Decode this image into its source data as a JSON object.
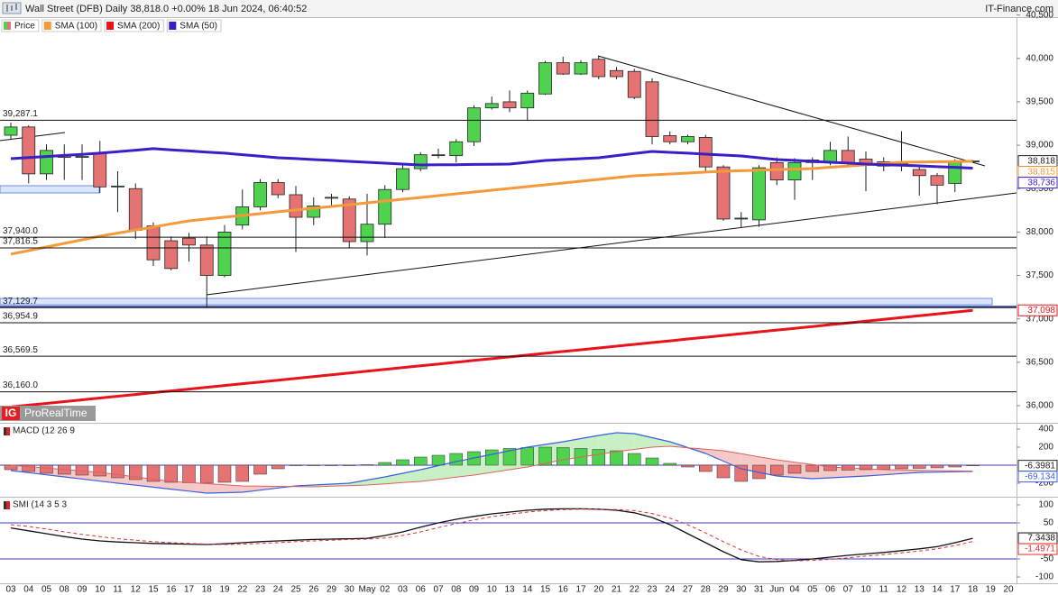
{
  "chart_data": [
    {
      "type": "candlestick",
      "title": "Wall Street (DFB) Daily 38,818.0 +0.00% 18 Jun 2024, 06:40:52",
      "source": "IT-Finance.com",
      "watermark_logo": "IG",
      "watermark": "ProRealTime",
      "categories": [
        "03",
        "04",
        "05",
        "08",
        "09",
        "10",
        "11",
        "12",
        "15",
        "16",
        "17",
        "18",
        "19",
        "22",
        "23",
        "24",
        "25",
        "26",
        "29",
        "30",
        "May",
        "02",
        "03",
        "06",
        "07",
        "08",
        "09",
        "10",
        "13",
        "14",
        "15",
        "16",
        "17",
        "20",
        "21",
        "22",
        "23",
        "24",
        "27",
        "28",
        "29",
        "30",
        "31",
        "Jun",
        "04",
        "05",
        "06",
        "07",
        "10",
        "11",
        "12",
        "13",
        "14",
        "17",
        "18",
        "19",
        "20"
      ],
      "ylim": [
        35813,
        40465
      ],
      "yticks": [
        {
          "value": 40500,
          "label": "40,500"
        },
        {
          "value": 40000,
          "label": "40,000"
        },
        {
          "value": 39500,
          "label": "39,500"
        },
        {
          "value": 39000,
          "label": "39,000"
        },
        {
          "value": 38500,
          "label": "38,500"
        },
        {
          "value": 38000,
          "label": "38,000"
        },
        {
          "value": 37500,
          "label": "37,500"
        },
        {
          "value": 37000,
          "label": "37,000"
        },
        {
          "value": 36500,
          "label": "36,500"
        },
        {
          "value": 36000,
          "label": "36,000"
        }
      ],
      "levels": [
        {
          "value": 39287.1,
          "label": "39,287.1"
        },
        {
          "value": 37940.0,
          "label": "37,940.0"
        },
        {
          "value": 37816.5,
          "label": "37,816.5"
        },
        {
          "value": 37129.7,
          "label": "37,129.7"
        },
        {
          "value": 36954.9,
          "label": "36,954.9"
        },
        {
          "value": 36569.5,
          "label": "36,569.5"
        },
        {
          "value": 36160.0,
          "label": "36,160.0"
        }
      ],
      "series": [
        {
          "name": "Price",
          "up_color": "#4fd34f",
          "down_color": "#e57373",
          "color": "#222222",
          "last_label": "38,818",
          "open": [
            39115,
            39210,
            38670,
            38880,
            38860,
            38910,
            38520,
            38500,
            38070,
            37900,
            37930,
            37850,
            37500,
            38080,
            38290,
            38570,
            38430,
            38170,
            38390,
            38380,
            37890,
            38090,
            38490,
            38730,
            38890,
            38880,
            39040,
            39430,
            39500,
            39430,
            39590,
            39950,
            39820,
            39990,
            39860,
            39850,
            39730,
            39110,
            39040,
            39090,
            38750,
            38150,
            38140,
            38800,
            38600,
            38800,
            38800,
            38940,
            38840,
            38810,
            38780,
            38720,
            38650,
            38560,
            38818,
            null,
            null
          ],
          "high": [
            39260,
            39230,
            39010,
            39010,
            39010,
            39050,
            38700,
            38560,
            38110,
            37950,
            37990,
            37950,
            38080,
            38490,
            38610,
            38610,
            38530,
            38400,
            38440,
            38410,
            38440,
            38540,
            38770,
            38920,
            38960,
            39070,
            39460,
            39560,
            39630,
            39630,
            39970,
            40020,
            39980,
            40030,
            39900,
            39880,
            39770,
            39160,
            39120,
            39120,
            38770,
            38230,
            38770,
            38860,
            38850,
            38860,
            39040,
            39100,
            38930,
            38860,
            39160,
            38750,
            38680,
            38840,
            38830,
            null,
            null
          ],
          "low": [
            39060,
            38560,
            38600,
            38600,
            38600,
            38450,
            38230,
            37920,
            37610,
            37560,
            37660,
            37130,
            37480,
            38030,
            38250,
            38390,
            37770,
            38080,
            38300,
            37820,
            37730,
            37930,
            38460,
            38700,
            38850,
            38800,
            38990,
            39410,
            39380,
            39290,
            39580,
            39810,
            39810,
            39760,
            39760,
            39530,
            39010,
            39010,
            39010,
            38700,
            38130,
            38050,
            38060,
            38540,
            38370,
            38600,
            38770,
            38750,
            38470,
            38700,
            38700,
            38420,
            38320,
            38460,
            38810,
            null,
            null
          ],
          "close": [
            39210,
            38670,
            38940,
            38860,
            38870,
            38520,
            38530,
            38020,
            37680,
            37580,
            37850,
            37500,
            38000,
            38290,
            38570,
            38430,
            38170,
            38300,
            38400,
            37890,
            38090,
            38490,
            38730,
            38890,
            38880,
            39040,
            39430,
            39480,
            39430,
            39600,
            39950,
            39820,
            39950,
            39790,
            39790,
            39550,
            39100,
            39040,
            39100,
            38750,
            38150,
            38160,
            38740,
            38600,
            38800,
            38830,
            38940,
            38790,
            38790,
            38760,
            38790,
            38650,
            38540,
            38820,
            38818,
            null,
            null
          ]
        },
        {
          "name": "SMA (100)",
          "color": "#f59a3a",
          "width": 3,
          "last_label": "38,815",
          "values": [
            37745,
            37786,
            37828,
            37869,
            37911,
            37952,
            37987,
            38023,
            38058,
            38094,
            38129,
            38150,
            38171,
            38191,
            38212,
            38233,
            38254,
            38274,
            38295,
            38315,
            38336,
            38357,
            38378,
            38398,
            38419,
            38440,
            38461,
            38482,
            38502,
            38523,
            38544,
            38565,
            38586,
            38606,
            38627,
            38648,
            38658,
            38669,
            38679,
            38690,
            38700,
            38706,
            38712,
            38719,
            38725,
            38731,
            38746,
            38760,
            38775,
            38789,
            38804,
            38807,
            38810,
            38812,
            38815,
            null,
            null
          ]
        },
        {
          "name": "SMA (200)",
          "color": "#e8141c",
          "width": 3,
          "last_label": "37,098",
          "values": [
            35985,
            36006,
            36026,
            36047,
            36067,
            36088,
            36109,
            36129,
            36150,
            36170,
            36191,
            36212,
            36232,
            36253,
            36273,
            36294,
            36315,
            36335,
            36356,
            36376,
            36397,
            36418,
            36438,
            36459,
            36479,
            36500,
            36521,
            36541,
            36562,
            36582,
            36603,
            36624,
            36644,
            36665,
            36685,
            36706,
            36727,
            36747,
            36768,
            36788,
            36809,
            36830,
            36850,
            36871,
            36891,
            36912,
            36933,
            36953,
            36974,
            36994,
            37015,
            37036,
            37056,
            37077,
            37098,
            null,
            null
          ]
        },
        {
          "name": "SMA (50)",
          "color": "#3a1fc9",
          "width": 3,
          "last_label": "38,736",
          "values": [
            38845,
            38858,
            38870,
            38883,
            38895,
            38908,
            38925,
            38943,
            38960,
            38947,
            38934,
            38921,
            38908,
            38891,
            38873,
            38856,
            38846,
            38835,
            38825,
            38814,
            38804,
            38793,
            38783,
            38772,
            38774,
            38776,
            38779,
            38781,
            38783,
            38804,
            38824,
            38835,
            38845,
            38856,
            38880,
            38904,
            38928,
            38918,
            38908,
            38897,
            38887,
            38876,
            38856,
            38835,
            38825,
            38814,
            38804,
            38794,
            38783,
            38776,
            38769,
            38762,
            38753,
            38745,
            38736,
            null,
            null
          ]
        }
      ]
    },
    {
      "type": "macd",
      "title": "MACD (12 26 9",
      "ylim": [
        -340,
        460
      ],
      "yticks": [
        400,
        200,
        -200
      ],
      "levels": [
        0
      ],
      "fill_up": "#c9f0c4",
      "fill_down": "#f6c9c9",
      "histogram": {
        "up_color": "#4fd34f",
        "down_color": "#e57373",
        "last_label": "-6.3981",
        "values": [
          -50,
          -70,
          -90,
          -100,
          -110,
          -120,
          -140,
          -160,
          -180,
          -190,
          -195,
          -200,
          -190,
          -180,
          -100,
          -40,
          0,
          0,
          0,
          0,
          5,
          30,
          60,
          90,
          110,
          130,
          150,
          170,
          185,
          195,
          200,
          195,
          185,
          175,
          160,
          130,
          80,
          20,
          -20,
          -70,
          -140,
          -180,
          -150,
          -110,
          -90,
          -70,
          -60,
          -55,
          -50,
          -45,
          -40,
          -35,
          -30,
          -20,
          -6.3981,
          null,
          null
        ]
      },
      "series": [
        {
          "color": "#3a5fe0",
          "width": 1.2,
          "last_label": "-69.134",
          "values": [
            -60,
            -83,
            -107,
            -130,
            -153,
            -177,
            -200,
            -222,
            -244,
            -266,
            -288,
            -310,
            -305,
            -300,
            -277,
            -253,
            -230,
            -220,
            -210,
            -200,
            -165,
            -130,
            -90,
            -50,
            -5,
            40,
            80,
            120,
            160,
            200,
            230,
            260,
            295,
            330,
            360,
            350,
            305,
            260,
            195,
            130,
            45,
            -40,
            -80,
            -120,
            -135,
            -150,
            -140,
            -130,
            -120,
            -107,
            -93,
            -80,
            -77,
            -73,
            -69.134,
            null,
            null
          ]
        },
        {
          "color": "#e06060",
          "width": 1,
          "values": [
            0,
            -16,
            -32,
            -48,
            -64,
            -80,
            -105,
            -130,
            -155,
            -180,
            -193,
            -205,
            -218,
            -230,
            -233,
            -235,
            -238,
            -240,
            -233,
            -227,
            -220,
            -207,
            -193,
            -180,
            -157,
            -133,
            -110,
            -80,
            -50,
            -20,
            20,
            60,
            90,
            120,
            150,
            175,
            200,
            210,
            193,
            177,
            160,
            127,
            93,
            60,
            33,
            7,
            -20,
            -30,
            -40,
            -50,
            -53,
            -57,
            -60,
            -63,
            -65,
            null,
            null
          ]
        }
      ]
    },
    {
      "type": "line",
      "title": "SMI (14 3 5 3",
      "ylim": [
        -120,
        120
      ],
      "yticks": [
        100,
        50,
        -50,
        -100
      ],
      "levels": [
        50,
        -50
      ],
      "series": [
        {
          "color": "#111111",
          "width": 1.3,
          "last_label": "7.3438",
          "values": [
            36,
            28,
            20,
            12,
            5,
            0,
            -3,
            -5,
            -7,
            -8,
            -9,
            -10,
            -8,
            -5,
            -2,
            0,
            2,
            4,
            5,
            6,
            7,
            15,
            25,
            38,
            50,
            60,
            68,
            75,
            80,
            85,
            88,
            89,
            89,
            88,
            85,
            78,
            65,
            45,
            20,
            -5,
            -30,
            -52,
            -58,
            -57,
            -54,
            -50,
            -45,
            -40,
            -36,
            -32,
            -27,
            -22,
            -16,
            -5,
            7.3438,
            null,
            null
          ]
        },
        {
          "color": "#e03030",
          "width": 1,
          "dash": true,
          "last_label": "-1.4971",
          "values": [
            45,
            40,
            33,
            25,
            18,
            12,
            6,
            2,
            -2,
            -5,
            -7,
            -9,
            -10,
            -9,
            -7,
            -5,
            -2,
            0,
            2,
            4,
            5,
            8,
            15,
            25,
            37,
            48,
            58,
            67,
            74,
            80,
            84,
            87,
            88,
            88,
            87,
            84,
            76,
            63,
            45,
            22,
            -2,
            -25,
            -43,
            -52,
            -55,
            -54,
            -51,
            -47,
            -42,
            -38,
            -33,
            -28,
            -22,
            -13,
            -1.4971,
            null,
            null
          ]
        }
      ]
    }
  ]
}
